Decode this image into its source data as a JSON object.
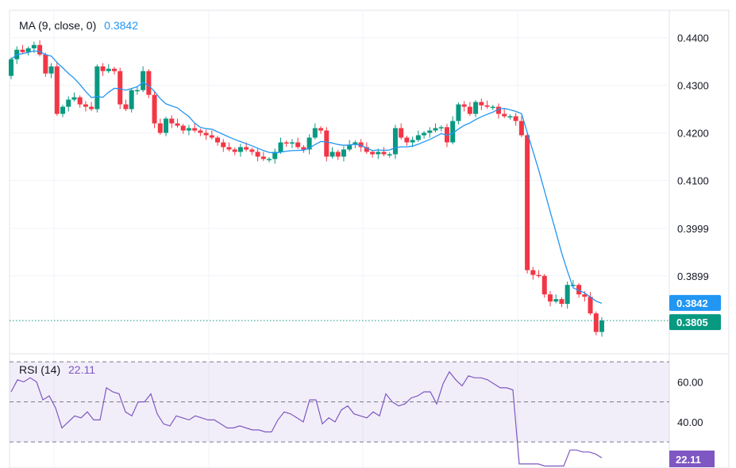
{
  "ma_legend": {
    "label": "MA (9, close, 0)",
    "value": "0.3842"
  },
  "rsi_legend": {
    "label": "RSI (14)",
    "value": "22.11"
  },
  "colors": {
    "up": "#089981",
    "down": "#F23645",
    "ma": "#2196F3",
    "rsi": "#7E57C2",
    "last": "#089981"
  },
  "chart_data": [
    {
      "type": "candlestick",
      "title": "Price",
      "price_ticks": [
        "0.4400",
        "0.4300",
        "0.4200",
        "0.4100",
        "0.3999",
        "0.3899"
      ],
      "price_tick_values": [
        0.44,
        0.43,
        0.42,
        0.41,
        0.3999,
        0.3899
      ],
      "ylim": [
        0.3735,
        0.4458
      ],
      "ma_label": "0.3842",
      "ma_value": 0.3842,
      "last_label": "0.3805",
      "last_value": 0.3805,
      "first_open": 0.432,
      "closes": [
        0.4355,
        0.4375,
        0.437,
        0.4378,
        0.4385,
        0.4365,
        0.4325,
        0.434,
        0.424,
        0.4255,
        0.427,
        0.4275,
        0.426,
        0.4255,
        0.425,
        0.434,
        0.433,
        0.4335,
        0.433,
        0.426,
        0.425,
        0.429,
        0.429,
        0.433,
        0.428,
        0.422,
        0.42,
        0.423,
        0.422,
        0.4215,
        0.4205,
        0.421,
        0.4205,
        0.42,
        0.4195,
        0.419,
        0.418,
        0.417,
        0.4165,
        0.416,
        0.417,
        0.4165,
        0.416,
        0.415,
        0.4145,
        0.4145,
        0.416,
        0.418,
        0.4178,
        0.418,
        0.417,
        0.4165,
        0.419,
        0.421,
        0.4205,
        0.415,
        0.416,
        0.415,
        0.4165,
        0.4175,
        0.418,
        0.417,
        0.416,
        0.4155,
        0.416,
        0.4155,
        0.4155,
        0.421,
        0.419,
        0.418,
        0.4185,
        0.4195,
        0.42,
        0.4205,
        0.421,
        0.4212,
        0.418,
        0.4225,
        0.426,
        0.4255,
        0.424,
        0.4265,
        0.4258,
        0.4255,
        0.4255,
        0.424,
        0.4235,
        0.4235,
        0.4225,
        0.4195,
        0.3911,
        0.3901,
        0.3899,
        0.386,
        0.3845,
        0.385,
        0.384,
        0.388,
        0.388,
        0.386,
        0.3855,
        0.382,
        0.3781,
        0.3805
      ]
    },
    {
      "type": "line",
      "title": "RSI (14)",
      "ticks": [
        "60.00",
        "40.00"
      ],
      "tick_values": [
        60,
        40
      ],
      "bands": [
        70,
        50,
        30
      ],
      "ylim": [
        17,
        74
      ],
      "last_label": "22.11",
      "values": [
        55,
        61,
        60,
        62,
        60,
        51,
        53,
        47,
        37,
        40,
        43,
        42,
        45,
        41,
        41,
        57,
        55,
        54,
        45,
        43,
        50,
        50,
        54,
        44,
        39,
        38,
        43,
        42,
        41,
        43,
        42,
        41,
        41,
        39,
        37,
        37,
        38,
        37,
        36,
        36,
        35,
        35,
        41,
        45,
        44,
        42,
        40,
        51,
        51,
        39,
        42,
        40,
        46,
        48,
        44,
        43,
        42,
        45,
        43,
        54,
        50,
        48,
        49,
        52,
        53,
        55,
        55,
        49,
        59,
        65,
        61,
        58,
        63,
        62,
        62,
        61,
        59,
        57,
        57,
        56,
        19,
        19,
        19,
        19,
        18,
        18,
        18,
        18,
        26,
        26,
        25,
        25,
        24,
        22.11
      ]
    }
  ]
}
